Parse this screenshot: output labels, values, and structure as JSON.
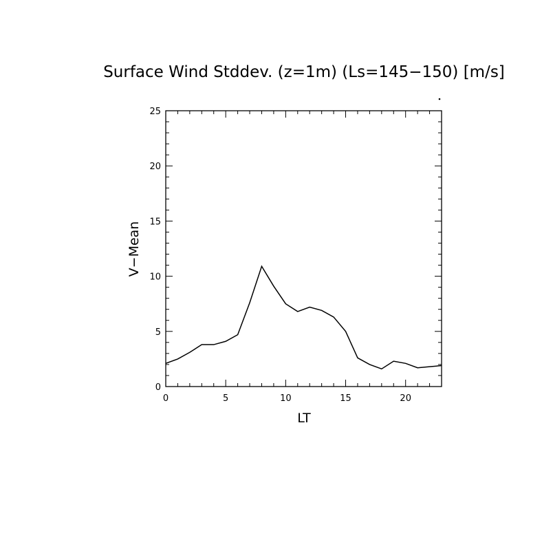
{
  "chart_data": {
    "type": "line",
    "title": "Surface Wind Stddev. (z=1m) (Ls=145−150) [m/s]",
    "xlabel": "LT",
    "ylabel": "V−Mean",
    "xlim": [
      0,
      23
    ],
    "ylim": [
      0,
      25
    ],
    "x_ticks": [
      0,
      5,
      10,
      15,
      20
    ],
    "y_ticks": [
      0,
      5,
      10,
      15,
      20,
      25
    ],
    "x_tick_labels": [
      "0",
      "5",
      "10",
      "15",
      "20"
    ],
    "y_tick_labels": [
      "0",
      "5",
      "10",
      "15",
      "20",
      "25"
    ],
    "x_minor_step": 1,
    "y_minor_step": 1,
    "grid": false,
    "series": [
      {
        "x": [
          0,
          1,
          2,
          3,
          4,
          5,
          6,
          7,
          8,
          9,
          10,
          11,
          12,
          13,
          14,
          15,
          16,
          17,
          18,
          19,
          20,
          21,
          22,
          23
        ],
        "values": [
          2.1,
          2.5,
          3.1,
          3.8,
          3.8,
          4.1,
          4.7,
          7.6,
          10.9,
          9.1,
          7.5,
          6.8,
          7.2,
          6.9,
          6.3,
          5.0,
          2.6,
          2.0,
          1.6,
          2.3,
          2.1,
          1.7,
          1.8,
          1.9
        ]
      }
    ]
  }
}
